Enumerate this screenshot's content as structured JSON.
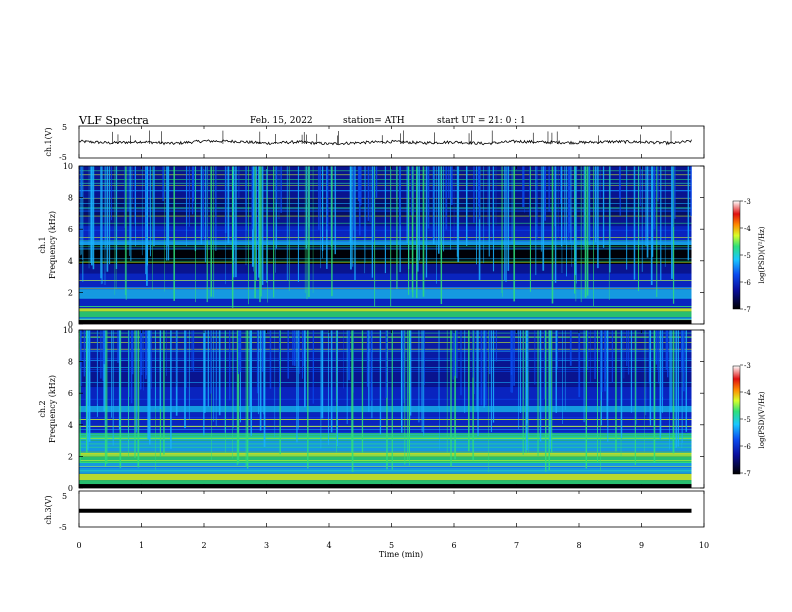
{
  "header": {
    "title": "VLF  Spectra",
    "date": "Feb. 15, 2022",
    "station": "station= ATH",
    "start": "start  UT  =    21: 0   : 1"
  },
  "chart_data": [
    {
      "type": "line",
      "ylabel": "ch.1(V)",
      "ylim": [
        -5,
        5
      ],
      "yticks": [
        "5",
        "-5"
      ],
      "x": [
        0,
        0.5,
        1,
        1.5,
        2,
        2.5,
        3,
        3.5,
        4,
        4.5,
        5,
        5.5,
        6,
        6.5,
        7,
        7.5,
        8,
        8.5,
        9,
        9.5,
        9.8
      ],
      "values": [
        0.2,
        -0.3,
        0.1,
        -0.5,
        0.3,
        0.2,
        -0.4,
        0.0,
        -0.6,
        -0.2,
        0.1,
        -0.3,
        0.0,
        -0.5,
        0.2,
        -0.1,
        -0.2,
        0.1,
        0.0,
        -0.4,
        0.3
      ]
    },
    {
      "type": "heatmap",
      "ylabel": "ch.1\nFrequency (kHz)",
      "ylim": [
        0,
        10
      ],
      "yticks": [
        "0",
        "2",
        "4",
        "6",
        "8",
        "10"
      ],
      "colorbar": {
        "label": "log(PSD)(V²/Hz)",
        "ticks": [
          "-3",
          "-4",
          "-5",
          "-6",
          "-7"
        ]
      },
      "dark_band_khz": [
        3.8,
        5.0
      ]
    },
    {
      "type": "heatmap",
      "ylabel": "ch.2\nFrequency (kHz)",
      "ylim": [
        0,
        10
      ],
      "yticks": [
        "0",
        "2",
        "4",
        "6",
        "8",
        "10"
      ],
      "colorbar": {
        "label": "log(PSD)(V²/Hz)",
        "ticks": [
          "-3",
          "-4",
          "-5",
          "-6",
          "-7"
        ]
      }
    },
    {
      "type": "line",
      "ylabel": "ch.3(V)",
      "ylim": [
        -5,
        5
      ],
      "yticks": [
        "5",
        "-5"
      ],
      "x": [
        0,
        9.8
      ],
      "values": [
        -0.5,
        -0.5
      ]
    }
  ],
  "xaxis": {
    "label": "Time (min)",
    "range": [
      0,
      10
    ],
    "ticks": [
      "0",
      "1",
      "2",
      "3",
      "4",
      "5",
      "6",
      "7",
      "8",
      "9",
      "10"
    ]
  },
  "colors": {
    "background": "#000033",
    "dark": "#000000",
    "blue": "#0a2ad8",
    "cyan": "#19b4ff",
    "green": "#2fe07a",
    "yellow": "#d8ff2a",
    "red": "#e01010"
  }
}
